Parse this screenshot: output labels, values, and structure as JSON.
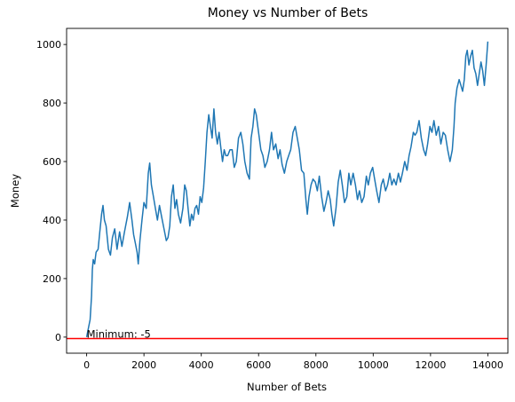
{
  "chart_data": {
    "type": "line",
    "title": "Money vs Number of Bets",
    "xlabel": "Number of Bets",
    "ylabel": "Money",
    "xlim": [
      -700,
      14700
    ],
    "ylim": [
      -55,
      1055
    ],
    "xticks": [
      0,
      2000,
      4000,
      6000,
      8000,
      10000,
      12000,
      14000
    ],
    "yticks": [
      0,
      200,
      400,
      600,
      800,
      1000
    ],
    "grid": false,
    "series": [
      {
        "color": "#1f77b4",
        "points": [
          [
            0,
            0
          ],
          [
            50,
            25
          ],
          [
            120,
            60
          ],
          [
            170,
            140
          ],
          [
            200,
            230
          ],
          [
            230,
            265
          ],
          [
            280,
            250
          ],
          [
            330,
            290
          ],
          [
            400,
            300
          ],
          [
            460,
            360
          ],
          [
            520,
            420
          ],
          [
            570,
            450
          ],
          [
            620,
            400
          ],
          [
            680,
            380
          ],
          [
            760,
            300
          ],
          [
            830,
            280
          ],
          [
            900,
            340
          ],
          [
            980,
            370
          ],
          [
            1060,
            300
          ],
          [
            1150,
            360
          ],
          [
            1230,
            310
          ],
          [
            1320,
            360
          ],
          [
            1420,
            410
          ],
          [
            1500,
            460
          ],
          [
            1580,
            400
          ],
          [
            1640,
            350
          ],
          [
            1700,
            320
          ],
          [
            1760,
            290
          ],
          [
            1800,
            250
          ],
          [
            1860,
            330
          ],
          [
            1930,
            400
          ],
          [
            2000,
            460
          ],
          [
            2080,
            440
          ],
          [
            2150,
            560
          ],
          [
            2200,
            595
          ],
          [
            2260,
            520
          ],
          [
            2330,
            480
          ],
          [
            2400,
            440
          ],
          [
            2470,
            400
          ],
          [
            2540,
            450
          ],
          [
            2620,
            410
          ],
          [
            2700,
            370
          ],
          [
            2780,
            330
          ],
          [
            2840,
            340
          ],
          [
            2900,
            380
          ],
          [
            2960,
            480
          ],
          [
            3020,
            520
          ],
          [
            3080,
            440
          ],
          [
            3140,
            470
          ],
          [
            3200,
            420
          ],
          [
            3280,
            390
          ],
          [
            3360,
            440
          ],
          [
            3420,
            520
          ],
          [
            3480,
            500
          ],
          [
            3540,
            440
          ],
          [
            3600,
            380
          ],
          [
            3660,
            420
          ],
          [
            3720,
            400
          ],
          [
            3780,
            440
          ],
          [
            3840,
            450
          ],
          [
            3900,
            420
          ],
          [
            3960,
            480
          ],
          [
            4020,
            460
          ],
          [
            4080,
            510
          ],
          [
            4140,
            600
          ],
          [
            4200,
            700
          ],
          [
            4260,
            760
          ],
          [
            4320,
            720
          ],
          [
            4380,
            680
          ],
          [
            4440,
            780
          ],
          [
            4500,
            700
          ],
          [
            4560,
            660
          ],
          [
            4620,
            700
          ],
          [
            4680,
            650
          ],
          [
            4740,
            600
          ],
          [
            4800,
            640
          ],
          [
            4860,
            620
          ],
          [
            4920,
            620
          ],
          [
            5000,
            640
          ],
          [
            5080,
            640
          ],
          [
            5150,
            580
          ],
          [
            5220,
            600
          ],
          [
            5300,
            680
          ],
          [
            5380,
            700
          ],
          [
            5450,
            660
          ],
          [
            5520,
            600
          ],
          [
            5600,
            560
          ],
          [
            5680,
            540
          ],
          [
            5740,
            680
          ],
          [
            5800,
            720
          ],
          [
            5860,
            780
          ],
          [
            5920,
            760
          ],
          [
            6000,
            700
          ],
          [
            6080,
            640
          ],
          [
            6150,
            620
          ],
          [
            6220,
            580
          ],
          [
            6300,
            600
          ],
          [
            6380,
            640
          ],
          [
            6450,
            700
          ],
          [
            6520,
            640
          ],
          [
            6600,
            660
          ],
          [
            6680,
            610
          ],
          [
            6750,
            640
          ],
          [
            6820,
            590
          ],
          [
            6900,
            560
          ],
          [
            6980,
            600
          ],
          [
            7050,
            620
          ],
          [
            7120,
            640
          ],
          [
            7200,
            700
          ],
          [
            7280,
            720
          ],
          [
            7350,
            680
          ],
          [
            7420,
            640
          ],
          [
            7500,
            570
          ],
          [
            7580,
            560
          ],
          [
            7650,
            470
          ],
          [
            7700,
            420
          ],
          [
            7760,
            480
          ],
          [
            7830,
            520
          ],
          [
            7900,
            540
          ],
          [
            7980,
            530
          ],
          [
            8050,
            500
          ],
          [
            8120,
            550
          ],
          [
            8200,
            480
          ],
          [
            8280,
            430
          ],
          [
            8350,
            460
          ],
          [
            8430,
            500
          ],
          [
            8500,
            470
          ],
          [
            8560,
            420
          ],
          [
            8620,
            380
          ],
          [
            8700,
            440
          ],
          [
            8780,
            530
          ],
          [
            8850,
            570
          ],
          [
            8920,
            520
          ],
          [
            9000,
            460
          ],
          [
            9080,
            480
          ],
          [
            9150,
            560
          ],
          [
            9220,
            520
          ],
          [
            9300,
            560
          ],
          [
            9380,
            520
          ],
          [
            9450,
            470
          ],
          [
            9520,
            500
          ],
          [
            9600,
            460
          ],
          [
            9680,
            480
          ],
          [
            9760,
            550
          ],
          [
            9830,
            520
          ],
          [
            9900,
            560
          ],
          [
            9980,
            580
          ],
          [
            10050,
            540
          ],
          [
            10120,
            500
          ],
          [
            10200,
            460
          ],
          [
            10280,
            520
          ],
          [
            10350,
            540
          ],
          [
            10430,
            500
          ],
          [
            10500,
            520
          ],
          [
            10580,
            560
          ],
          [
            10650,
            520
          ],
          [
            10720,
            540
          ],
          [
            10800,
            520
          ],
          [
            10880,
            560
          ],
          [
            10950,
            530
          ],
          [
            11020,
            560
          ],
          [
            11100,
            600
          ],
          [
            11180,
            570
          ],
          [
            11250,
            620
          ],
          [
            11320,
            650
          ],
          [
            11400,
            700
          ],
          [
            11460,
            690
          ],
          [
            11520,
            700
          ],
          [
            11600,
            740
          ],
          [
            11680,
            680
          ],
          [
            11760,
            640
          ],
          [
            11830,
            620
          ],
          [
            11900,
            660
          ],
          [
            11980,
            720
          ],
          [
            12050,
            700
          ],
          [
            12120,
            740
          ],
          [
            12200,
            690
          ],
          [
            12280,
            720
          ],
          [
            12360,
            660
          ],
          [
            12440,
            700
          ],
          [
            12520,
            690
          ],
          [
            12600,
            640
          ],
          [
            12680,
            600
          ],
          [
            12760,
            640
          ],
          [
            12820,
            720
          ],
          [
            12860,
            800
          ],
          [
            12920,
            850
          ],
          [
            13000,
            880
          ],
          [
            13060,
            860
          ],
          [
            13120,
            840
          ],
          [
            13180,
            880
          ],
          [
            13230,
            960
          ],
          [
            13280,
            980
          ],
          [
            13340,
            930
          ],
          [
            13400,
            960
          ],
          [
            13460,
            980
          ],
          [
            13520,
            920
          ],
          [
            13580,
            900
          ],
          [
            13640,
            860
          ],
          [
            13700,
            900
          ],
          [
            13760,
            940
          ],
          [
            13820,
            910
          ],
          [
            13880,
            860
          ],
          [
            13940,
            930
          ],
          [
            14000,
            1010
          ]
        ]
      }
    ],
    "reference_line": {
      "y": -5,
      "color": "#ff0000"
    },
    "annotation": {
      "text": "Minimum: -5",
      "x": 0,
      "y": -5
    }
  }
}
